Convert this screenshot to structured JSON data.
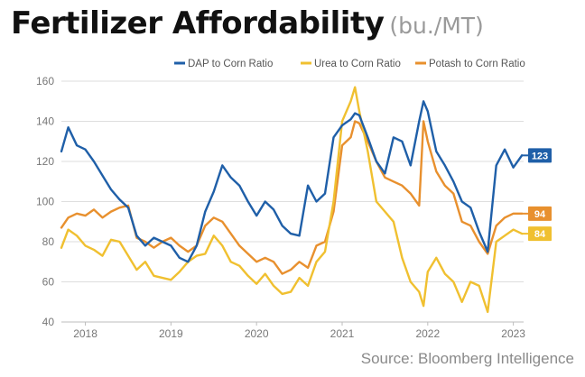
{
  "title": "Fertilizer Affordability",
  "subtitle": "(bu./MT)",
  "source": "Source: Bloomberg Intelligence",
  "chart_data": {
    "type": "line",
    "title": "Fertilizer Affordability",
    "subtitle": "(bu./MT)",
    "xlabel": "",
    "ylabel": "",
    "ylim": [
      40,
      160
    ],
    "yticks": [
      40,
      60,
      80,
      100,
      120,
      140,
      160
    ],
    "xlim": [
      2017.72,
      2023.12
    ],
    "xticks": [
      {
        "label": "2018",
        "x": 2018.0
      },
      {
        "label": "2019",
        "x": 2019.0
      },
      {
        "label": "2020",
        "x": 2020.0
      },
      {
        "label": "2021",
        "x": 2021.0
      },
      {
        "label": "2022",
        "x": 2022.0
      },
      {
        "label": "2023",
        "x": 2023.0
      }
    ],
    "grid": "horizontal",
    "legend": "top",
    "series": [
      {
        "name": "DAP to Corn Ratio",
        "color": "#1f5fa8",
        "end_label": "123",
        "x": [
          2017.72,
          2017.8,
          2017.9,
          2018.0,
          2018.1,
          2018.2,
          2018.3,
          2018.4,
          2018.5,
          2018.6,
          2018.7,
          2018.8,
          2018.9,
          2019.0,
          2019.1,
          2019.2,
          2019.3,
          2019.4,
          2019.5,
          2019.6,
          2019.7,
          2019.8,
          2019.9,
          2020.0,
          2020.1,
          2020.2,
          2020.3,
          2020.4,
          2020.5,
          2020.6,
          2020.7,
          2020.8,
          2020.9,
          2021.0,
          2021.1,
          2021.15,
          2021.2,
          2021.3,
          2021.4,
          2021.5,
          2021.6,
          2021.7,
          2021.8,
          2021.9,
          2021.95,
          2022.0,
          2022.1,
          2022.2,
          2022.3,
          2022.4,
          2022.5,
          2022.6,
          2022.7,
          2022.8,
          2022.9,
          2023.0,
          2023.1
        ],
        "values": [
          125,
          137,
          128,
          126,
          120,
          113,
          106,
          101,
          97,
          83,
          78,
          82,
          80,
          78,
          72,
          70,
          78,
          95,
          105,
          118,
          112,
          108,
          100,
          93,
          100,
          96,
          88,
          84,
          83,
          108,
          100,
          104,
          132,
          138,
          141,
          144,
          143,
          132,
          120,
          114,
          132,
          130,
          118,
          140,
          150,
          145,
          125,
          118,
          110,
          100,
          97,
          85,
          75,
          118,
          126,
          117,
          123
        ]
      },
      {
        "name": "Urea to Corn Ratio",
        "color": "#f0c030",
        "end_label": "84",
        "x": [
          2017.72,
          2017.8,
          2017.9,
          2018.0,
          2018.1,
          2018.2,
          2018.3,
          2018.4,
          2018.5,
          2018.6,
          2018.7,
          2018.8,
          2018.9,
          2019.0,
          2019.1,
          2019.2,
          2019.3,
          2019.4,
          2019.5,
          2019.6,
          2019.7,
          2019.8,
          2019.9,
          2020.0,
          2020.1,
          2020.2,
          2020.3,
          2020.4,
          2020.5,
          2020.6,
          2020.7,
          2020.8,
          2020.9,
          2021.0,
          2021.1,
          2021.15,
          2021.2,
          2021.3,
          2021.4,
          2021.5,
          2021.6,
          2021.7,
          2021.8,
          2021.9,
          2021.95,
          2022.0,
          2022.1,
          2022.2,
          2022.3,
          2022.4,
          2022.5,
          2022.6,
          2022.7,
          2022.8,
          2022.9,
          2023.0,
          2023.1
        ],
        "values": [
          77,
          86,
          83,
          78,
          76,
          73,
          81,
          80,
          73,
          66,
          70,
          63,
          62,
          61,
          65,
          70,
          73,
          74,
          83,
          78,
          70,
          68,
          63,
          59,
          64,
          58,
          54,
          55,
          62,
          58,
          70,
          75,
          100,
          140,
          150,
          157,
          145,
          125,
          100,
          95,
          90,
          72,
          60,
          55,
          48,
          65,
          72,
          64,
          60,
          50,
          60,
          58,
          45,
          80,
          83,
          86,
          84
        ]
      },
      {
        "name": "Potash to Corn Ratio",
        "color": "#e8902e",
        "end_label": "94",
        "x": [
          2017.72,
          2017.8,
          2017.9,
          2018.0,
          2018.1,
          2018.2,
          2018.3,
          2018.4,
          2018.5,
          2018.6,
          2018.7,
          2018.8,
          2018.9,
          2019.0,
          2019.1,
          2019.2,
          2019.3,
          2019.4,
          2019.5,
          2019.6,
          2019.7,
          2019.8,
          2019.9,
          2020.0,
          2020.1,
          2020.2,
          2020.3,
          2020.4,
          2020.5,
          2020.6,
          2020.7,
          2020.8,
          2020.9,
          2021.0,
          2021.1,
          2021.15,
          2021.2,
          2021.3,
          2021.4,
          2021.5,
          2021.6,
          2021.7,
          2021.8,
          2021.9,
          2021.95,
          2022.0,
          2022.1,
          2022.2,
          2022.3,
          2022.4,
          2022.5,
          2022.6,
          2022.7,
          2022.8,
          2022.9,
          2023.0,
          2023.1
        ],
        "values": [
          87,
          92,
          94,
          93,
          96,
          92,
          95,
          97,
          98,
          82,
          80,
          77,
          80,
          82,
          78,
          75,
          78,
          88,
          92,
          90,
          84,
          78,
          74,
          70,
          72,
          70,
          64,
          66,
          70,
          67,
          78,
          80,
          95,
          128,
          132,
          140,
          139,
          130,
          120,
          112,
          110,
          108,
          104,
          98,
          140,
          130,
          115,
          108,
          104,
          90,
          88,
          80,
          74,
          88,
          92,
          94,
          94
        ]
      }
    ]
  }
}
